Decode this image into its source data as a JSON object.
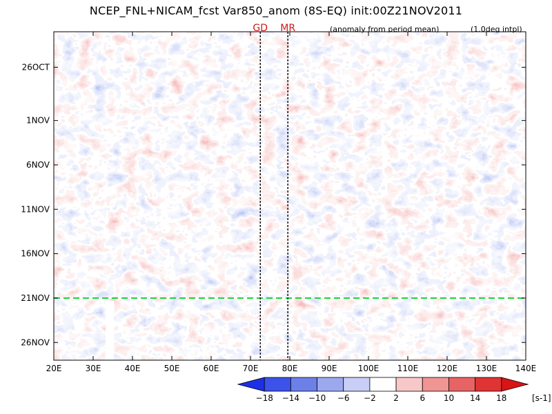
{
  "header": {
    "title": "NCEP_FNL+NICAM_fcst Var850_anom (8S-EQ) init:00Z21NOV2011",
    "anomaly_note": "(anomaly from period mean)",
    "interp_note": "(1.0deg intpl)"
  },
  "chart_data": {
    "type": "heatmap",
    "title": "NCEP_FNL+NICAM_fcst Var850_anom (8S-EQ) init:00Z21NOV2011",
    "x_ticks": [
      "20E",
      "30E",
      "40E",
      "50E",
      "60E",
      "70E",
      "80E",
      "90E",
      "100E",
      "110E",
      "120E",
      "130E",
      "140E"
    ],
    "x_values": [
      20,
      30,
      40,
      50,
      60,
      70,
      80,
      90,
      100,
      110,
      120,
      130,
      140
    ],
    "xlim": [
      20,
      140
    ],
    "y_ticks": [
      "26OCT",
      "1NOV",
      "6NOV",
      "11NOV",
      "16NOV",
      "21NOV",
      "26NOV"
    ],
    "y_dates": [
      "2011-10-26",
      "2011-11-01",
      "2011-11-06",
      "2011-11-11",
      "2011-11-16",
      "2011-11-21",
      "2011-11-26"
    ],
    "ylim": [
      "2011-10-22",
      "2011-11-28"
    ],
    "forecast_start": "2011-11-21",
    "markers": [
      {
        "label": "GD",
        "lon": 72.5
      },
      {
        "label": "MR",
        "lon": 79.5
      }
    ],
    "colorbar": {
      "levels": [
        -18,
        -14,
        -10,
        -6,
        -2,
        2,
        6,
        10,
        14,
        18
      ],
      "labels": [
        "-18",
        "-14",
        "-10",
        "-6",
        "-2",
        "2",
        "6",
        "10",
        "14",
        "18"
      ],
      "units": "[s-1]",
      "colors": [
        "#1c30e8",
        "#3c52e8",
        "#6c80e8",
        "#9ca8ee",
        "#c8ceF6",
        "#ffffff",
        "#f8c8c8",
        "#f09494",
        "#e86464",
        "#e03434",
        "#d81414"
      ]
    }
  }
}
